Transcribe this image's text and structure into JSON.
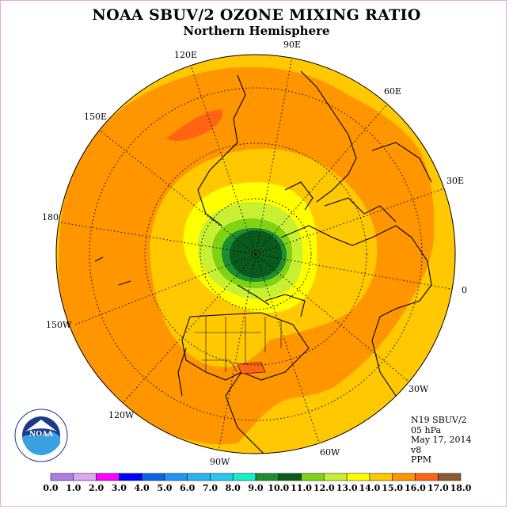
{
  "title": "NOAA SBUV/2 OZONE MIXING RATIO",
  "subtitle": "Northern Hemisphere",
  "longitude_labels": [
    "90E",
    "60E",
    "30E",
    "0",
    "30W",
    "60W",
    "90W",
    "120W",
    "150W",
    "180",
    "150E",
    "120E"
  ],
  "info": {
    "instrument": "N19 SBUV/2",
    "level": "05 hPa",
    "date": "May 17, 2014",
    "version": "v8",
    "units": "PPM"
  },
  "colorbar": {
    "ticks": [
      "0.0",
      "1.0",
      "2.0",
      "3.0",
      "4.0",
      "5.0",
      "6.0",
      "7.0",
      "8.0",
      "9.0",
      "10.0",
      "11.0",
      "12.0",
      "13.0",
      "14.0",
      "15.0",
      "16.0",
      "17.0",
      "18.0"
    ],
    "colors": [
      "#b07ee0",
      "#d8a8f0",
      "#ff00ff",
      "#0000ff",
      "#0a64e8",
      "#1e96f0",
      "#28b4f0",
      "#28c8f0",
      "#14f0c8",
      "#1e8c32",
      "#0a5a1e",
      "#80d214",
      "#c8f032",
      "#ffff00",
      "#ffc800",
      "#ff9600",
      "#ff6414",
      "#ff0000",
      "#8c5a32"
    ]
  },
  "logo": {
    "text": "NOAA",
    "ring_text": "NATIONAL OCEANIC AND ATMOSPHERIC ADMINISTRATION · U.S. DEPARTMENT OF COMMERCE"
  },
  "colors": {
    "bg_ring": "#ffc800",
    "dominant": "#ff9600",
    "high": "#ff6414",
    "core": "#0a5a1e",
    "green": "#1e8c32"
  }
}
